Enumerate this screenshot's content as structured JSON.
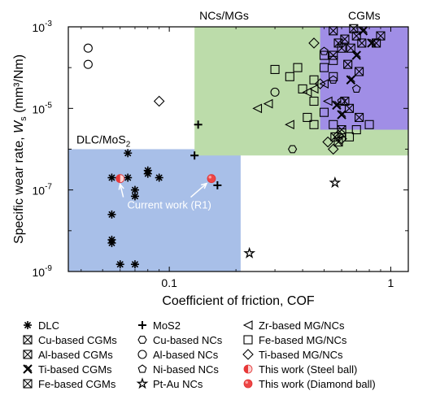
{
  "chart_data": {
    "type": "scatter",
    "xscale": "log",
    "yscale": "log",
    "xlim": [
      0.035,
      1.2
    ],
    "ylim": [
      1e-09,
      0.001
    ],
    "xlabel": "Coefficient of friction, COF",
    "ylabel_main": "Specific wear rate, ",
    "ylabel_sym": "W",
    "ylabel_sub": "s",
    "ylabel_unit": " (mm³/Nm)",
    "xticks": [
      {
        "v": 0.1,
        "label": "0.1"
      },
      {
        "v": 1,
        "label": "1"
      }
    ],
    "yticks": [
      {
        "v": 1e-09,
        "mant": "10",
        "exp": "-9"
      },
      {
        "v": 1e-07,
        "mant": "10",
        "exp": "-7"
      },
      {
        "v": 1e-05,
        "mant": "10",
        "exp": "-5"
      },
      {
        "v": 0.001,
        "mant": "10",
        "exp": "-3"
      }
    ],
    "regions": [
      {
        "name": "DLC/MoS2",
        "label_main": "DLC/MoS",
        "label_sub": "2",
        "x": [
          0.035,
          0.21
        ],
        "y": [
          1e-09,
          1e-06
        ],
        "color": "#a8bfe8"
      },
      {
        "name": "NCs/MGs",
        "label": "NCs/MGs",
        "x": [
          0.13,
          1.2
        ],
        "y": [
          7e-07,
          0.001
        ],
        "color": "#bcdcaa"
      },
      {
        "name": "CGMs",
        "label": "CGMs",
        "x": [
          0.48,
          1.2
        ],
        "y": [
          3e-06,
          0.001
        ],
        "color": "#a08ee6"
      }
    ],
    "annotation": {
      "text": "Current work (R1)"
    },
    "series": [
      {
        "name": "DLC",
        "marker": "asterisk",
        "points": [
          [
            0.065,
            8e-07
          ],
          [
            0.055,
            2e-07
          ],
          [
            0.065,
            2e-07
          ],
          [
            0.08,
            3e-07
          ],
          [
            0.08,
            2.5e-07
          ],
          [
            0.09,
            2e-07
          ],
          [
            0.07,
            1e-07
          ],
          [
            0.07,
            7e-08
          ],
          [
            0.055,
            2.5e-08
          ],
          [
            0.055,
            6e-09
          ],
          [
            0.055,
            5e-09
          ],
          [
            0.06,
            1.5e-09
          ],
          [
            0.07,
            1.5e-09
          ]
        ]
      },
      {
        "name": "MoS2",
        "marker": "plus",
        "points": [
          [
            0.13,
            7e-07
          ],
          [
            0.135,
            4e-06
          ],
          [
            0.165,
            1.3e-07
          ]
        ]
      },
      {
        "name": "Cu-based CGMs",
        "marker": "boxx",
        "points": [
          [
            0.55,
            0.0008
          ],
          [
            0.62,
            0.0005
          ],
          [
            0.7,
            0.0006
          ],
          [
            0.65,
            1e-05
          ],
          [
            0.72,
            6e-06
          ],
          [
            0.6,
            3e-06
          ]
        ]
      },
      {
        "name": "Al-based CGMs",
        "marker": "boxx",
        "points": [
          [
            0.58,
            0.0004
          ],
          [
            0.66,
            0.0003
          ],
          [
            0.74,
            0.0004
          ],
          [
            0.62,
            1.5e-05
          ],
          [
            0.56,
            2e-06
          ]
        ]
      },
      {
        "name": "Ti-based CGMs",
        "marker": "x",
        "points": [
          [
            0.75,
            0.0008
          ],
          [
            0.82,
            0.0004
          ],
          [
            0.7,
            0.0002
          ],
          [
            0.66,
            5e-05
          ],
          [
            0.57,
            1.2e-05
          ],
          [
            0.6,
            7e-06
          ]
        ]
      },
      {
        "name": "Fe-based CGMs",
        "marker": "boxx",
        "points": [
          [
            0.68,
            0.0009
          ],
          [
            0.6,
            0.0003
          ],
          [
            0.55,
            0.0002
          ],
          [
            0.64,
            0.00012
          ],
          [
            0.72,
            8e-05
          ],
          [
            0.58,
            1.5e-06
          ],
          [
            0.86,
            0.0004
          ],
          [
            0.9,
            0.0006
          ]
        ]
      },
      {
        "name": "Cu-based NCs",
        "marker": "hexagon",
        "points": [
          [
            0.36,
            1e-06
          ]
        ]
      },
      {
        "name": "Al-based NCs",
        "marker": "circle",
        "points": [
          [
            0.043,
            0.0003
          ],
          [
            0.043,
            0.00012
          ],
          [
            0.3,
            2.5e-05
          ]
        ]
      },
      {
        "name": "Ni-based NCs",
        "marker": "pentagon",
        "points": [
          [
            0.5,
            0.00025
          ],
          [
            0.55,
            5e-05
          ],
          [
            0.6,
            1.5e-05
          ],
          [
            0.7,
            3e-05
          ]
        ]
      },
      {
        "name": "Pt-Au NCs",
        "marker": "star",
        "points": [
          [
            0.56,
            1.5e-07
          ],
          [
            0.23,
            2.8e-09
          ]
        ]
      },
      {
        "name": "Zr-based MG/NCs",
        "marker": "triangle",
        "points": [
          [
            0.25,
            1e-05
          ],
          [
            0.28,
            1.3e-05
          ],
          [
            0.35,
            4e-06
          ],
          [
            0.42,
            2.5e-05
          ],
          [
            0.45,
            3e-05
          ],
          [
            0.5,
            4e-05
          ],
          [
            0.52,
            1.5e-05
          ]
        ]
      },
      {
        "name": "Fe-based MG/NCs",
        "marker": "square",
        "points": [
          [
            0.3,
            9e-05
          ],
          [
            0.35,
            6e-05
          ],
          [
            0.38,
            0.0001
          ],
          [
            0.4,
            3e-05
          ],
          [
            0.45,
            5e-05
          ],
          [
            0.5,
            0.0001
          ],
          [
            0.55,
            6e-05
          ],
          [
            0.45,
            1.5e-05
          ],
          [
            0.5,
            8e-06
          ],
          [
            0.42,
            6e-06
          ],
          [
            0.45,
            4e-06
          ],
          [
            0.55,
            4e-06
          ],
          [
            0.7,
            3e-06
          ],
          [
            0.8,
            4e-06
          ],
          [
            0.6,
            2.5e-06
          ],
          [
            0.65,
            2e-06
          ],
          [
            0.5,
            0.0002
          ],
          [
            0.55,
            0.00015
          ]
        ]
      },
      {
        "name": "Ti-based MG/NCs",
        "marker": "diamond",
        "points": [
          [
            0.09,
            1.5e-05
          ],
          [
            0.45,
            0.0004
          ],
          [
            0.52,
            1.5e-06
          ],
          [
            0.55,
            1e-06
          ],
          [
            0.6,
            1.8e-06
          ],
          [
            0.58,
            2.2e-06
          ],
          [
            0.48,
            4e-05
          ]
        ]
      },
      {
        "name": "This work (Steel ball)",
        "marker": "halfcircle",
        "points": [
          [
            0.06,
            1.9e-07
          ]
        ]
      },
      {
        "name": "This work (Diamond ball)",
        "marker": "redcircle",
        "points": [
          [
            0.155,
            1.9e-07
          ]
        ]
      }
    ],
    "legend_columns": [
      [
        "DLC",
        "Cu-based CGMs",
        "Al-based CGMs",
        "Ti-based CGMs",
        "Fe-based CGMs"
      ],
      [
        "MoS2",
        "Cu-based NCs",
        "Al-based NCs",
        "Ni-based NCs",
        "Pt-Au NCs"
      ],
      [
        "Zr-based MG/NCs",
        "Fe-based MG/NCs",
        "Ti-based MG/NCs",
        "This work (Steel ball)",
        "This work (Diamond ball)"
      ]
    ]
  }
}
